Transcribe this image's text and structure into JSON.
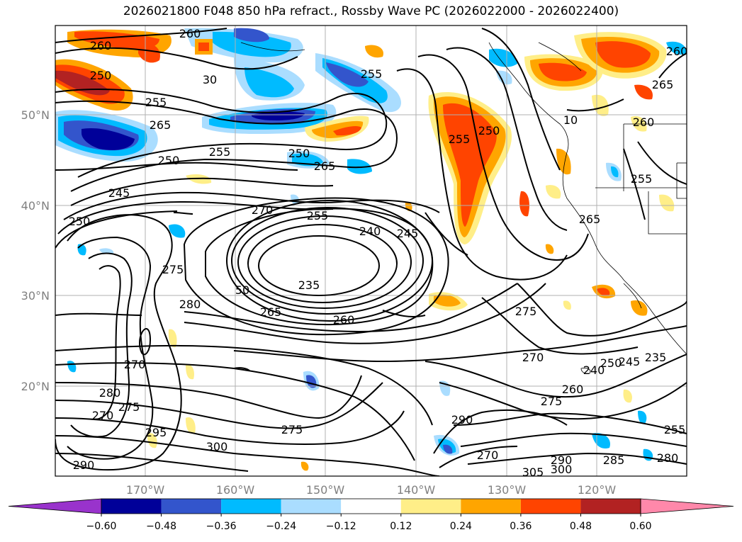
{
  "title": "2026021800 F048 850 hPa refract., Rossby Wave PC (2026022000 - 2026022400)",
  "map": {
    "lon_labels": [
      "170°W",
      "160°W",
      "150°W",
      "140°W",
      "130°W",
      "120°W"
    ],
    "lat_labels": [
      "50°N",
      "40°N",
      "30°N",
      "20°N"
    ],
    "contour_labels": [
      {
        "text": "260"
      },
      {
        "text": "260"
      },
      {
        "text": "250"
      },
      {
        "text": "30"
      },
      {
        "text": "255"
      },
      {
        "text": "255"
      },
      {
        "text": "265"
      },
      {
        "text": "255"
      },
      {
        "text": "250"
      },
      {
        "text": "250"
      },
      {
        "text": "265"
      },
      {
        "text": "245"
      },
      {
        "text": "270"
      },
      {
        "text": "255"
      },
      {
        "text": "240"
      },
      {
        "text": "245"
      },
      {
        "text": "250"
      },
      {
        "text": "235"
      },
      {
        "text": "265"
      },
      {
        "text": "260"
      },
      {
        "text": "275"
      },
      {
        "text": "280"
      },
      {
        "text": "50"
      },
      {
        "text": "270"
      },
      {
        "text": "280"
      },
      {
        "text": "270"
      },
      {
        "text": "275"
      },
      {
        "text": "295"
      },
      {
        "text": "290"
      },
      {
        "text": "300"
      },
      {
        "text": "275"
      },
      {
        "text": "290"
      },
      {
        "text": "270"
      },
      {
        "text": "305"
      },
      {
        "text": "300"
      },
      {
        "text": "290"
      },
      {
        "text": "275"
      },
      {
        "text": "270"
      },
      {
        "text": "260"
      },
      {
        "text": "240"
      },
      {
        "text": "250"
      },
      {
        "text": "245"
      },
      {
        "text": "235"
      },
      {
        "text": "255"
      },
      {
        "text": "285"
      },
      {
        "text": "280"
      },
      {
        "text": "275"
      },
      {
        "text": "250"
      },
      {
        "text": "255"
      },
      {
        "text": "265"
      },
      {
        "text": "255"
      },
      {
        "text": "260"
      },
      {
        "text": "265"
      },
      {
        "text": "260"
      },
      {
        "text": "10"
      }
    ]
  },
  "colorbar": {
    "ticks": [
      "−0.60",
      "−0.48",
      "−0.36",
      "−0.24",
      "−0.12",
      "0.12",
      "0.24",
      "0.36",
      "0.48",
      "0.60"
    ],
    "colors": [
      "#9933cc",
      "#000099",
      "#3355cc",
      "#00bbff",
      "#aaddff",
      "#ffffff",
      "#ffee88",
      "#ffa500",
      "#ff4400",
      "#b22222",
      "#ff88aa"
    ]
  }
}
